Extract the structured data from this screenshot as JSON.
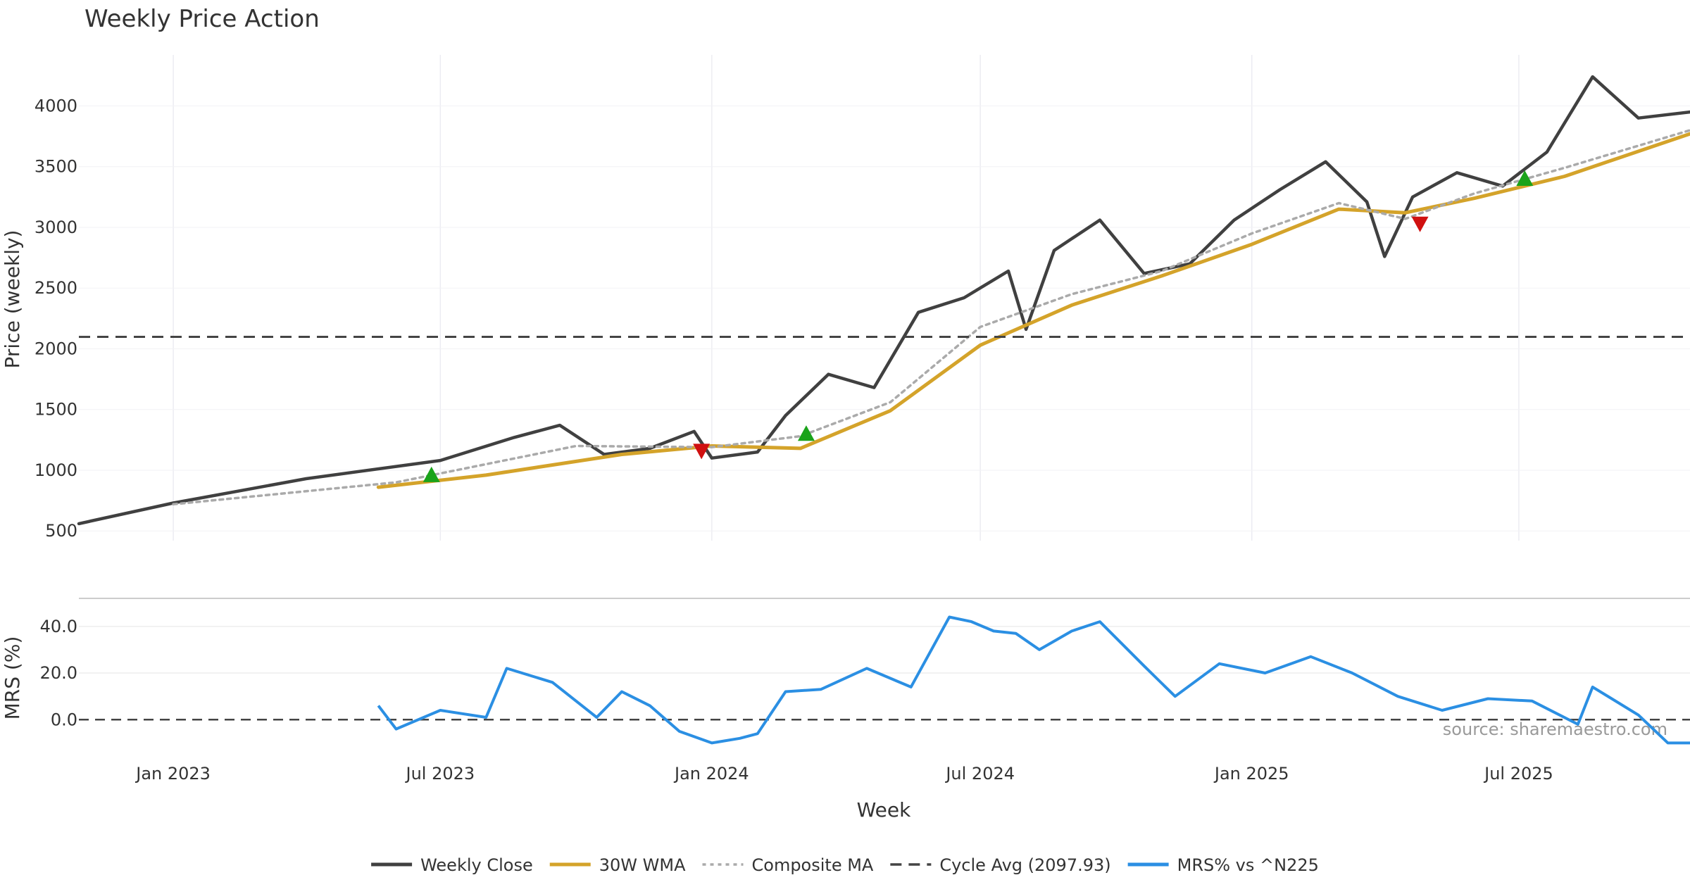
{
  "chart_data": [
    {
      "type": "line",
      "title": "Weekly Price Action",
      "ylabel": "Price (weekly)",
      "ylim": [
        420,
        4420
      ],
      "yticks": [
        500,
        1000,
        1500,
        2000,
        2500,
        3000,
        3500,
        4000
      ],
      "xlim": [
        "2022-10-29",
        "2025-10-25"
      ],
      "grid": true,
      "series": [
        {
          "name": "Weekly Close",
          "color": "#404040",
          "x": [
            "2022-10-29",
            "2023-01-01",
            "2023-04-01",
            "2023-07-01",
            "2023-08-20",
            "2023-09-20",
            "2023-10-20",
            "2023-11-20",
            "2023-12-20",
            "2024-01-01",
            "2024-02-01",
            "2024-02-20",
            "2024-03-20",
            "2024-04-20",
            "2024-05-20",
            "2024-06-20",
            "2024-07-20",
            "2024-08-01",
            "2024-08-20",
            "2024-09-20",
            "2024-10-20",
            "2024-11-20",
            "2024-12-20",
            "2025-01-20",
            "2025-02-20",
            "2025-03-20",
            "2025-04-01",
            "2025-04-20",
            "2025-05-20",
            "2025-06-20",
            "2025-07-20",
            "2025-08-20",
            "2025-09-20",
            "2025-10-25"
          ],
          "values": [
            560,
            730,
            930,
            1080,
            1270,
            1370,
            1130,
            1180,
            1320,
            1100,
            1150,
            1450,
            1790,
            1680,
            2300,
            2420,
            2640,
            2160,
            2810,
            3060,
            2620,
            2700,
            3060,
            3310,
            3540,
            3210,
            2760,
            3250,
            3450,
            3340,
            3620,
            4240,
            3900,
            3950
          ]
        },
        {
          "name": "30W WMA",
          "color": "#d4a32a",
          "x": [
            "2023-05-20",
            "2023-08-01",
            "2023-11-01",
            "2024-01-01",
            "2024-03-01",
            "2024-05-01",
            "2024-07-01",
            "2024-09-01",
            "2024-11-01",
            "2025-01-01",
            "2025-03-01",
            "2025-04-15",
            "2025-06-01",
            "2025-08-01",
            "2025-10-25"
          ],
          "values": [
            860,
            960,
            1130,
            1200,
            1180,
            1490,
            2030,
            2360,
            2600,
            2860,
            3150,
            3120,
            3240,
            3420,
            3770
          ]
        },
        {
          "name": "Composite MA",
          "color": "#aaaaaa",
          "x": [
            "2023-01-01",
            "2023-06-01",
            "2023-10-01",
            "2024-01-01",
            "2024-03-01",
            "2024-05-01",
            "2024-07-01",
            "2024-09-01",
            "2024-11-01",
            "2025-01-01",
            "2025-03-01",
            "2025-04-15",
            "2025-06-01",
            "2025-08-01",
            "2025-10-25"
          ],
          "values": [
            720,
            900,
            1200,
            1190,
            1280,
            1560,
            2180,
            2450,
            2640,
            2950,
            3200,
            3070,
            3280,
            3490,
            3800
          ]
        },
        {
          "name": "Cycle Avg (2097.93)",
          "color": "#444444",
          "constant": 2097.93
        }
      ],
      "markers": [
        {
          "kind": "buy",
          "date": "2023-06-25",
          "value": 960,
          "color": "#1aa31a"
        },
        {
          "kind": "sell",
          "date": "2023-12-25",
          "value": 1160,
          "color": "#d01010"
        },
        {
          "kind": "buy",
          "date": "2024-03-05",
          "value": 1300,
          "color": "#1aa31a"
        },
        {
          "kind": "sell",
          "date": "2025-04-25",
          "value": 3030,
          "color": "#d01010"
        },
        {
          "kind": "buy",
          "date": "2025-07-05",
          "value": 3400,
          "color": "#1aa31a"
        }
      ]
    },
    {
      "type": "line",
      "title": "",
      "xlabel": "Week",
      "ylabel": "MRS (%)",
      "ylim": [
        -15,
        52
      ],
      "yticks": [
        "40.0",
        "20.0",
        "0.0"
      ],
      "ytick_values": [
        40,
        20,
        0
      ],
      "xticks": [
        "Jan 2023",
        "Jul 2023",
        "Jan 2024",
        "Jul 2024",
        "Jan 2025",
        "Jul 2025"
      ],
      "xtick_dates": [
        "2023-01-01",
        "2023-07-01",
        "2024-01-01",
        "2024-07-01",
        "2025-01-01",
        "2025-07-01"
      ],
      "xlim": [
        "2022-10-29",
        "2025-10-25"
      ],
      "series": [
        {
          "name": "MRS% vs ^N225",
          "color": "#2b8fe3",
          "x": [
            "2023-05-20",
            "2023-06-01",
            "2023-07-01",
            "2023-08-01",
            "2023-08-15",
            "2023-09-15",
            "2023-10-15",
            "2023-11-01",
            "2023-11-20",
            "2023-12-10",
            "2024-01-01",
            "2024-01-20",
            "2024-02-01",
            "2024-02-20",
            "2024-03-15",
            "2024-04-15",
            "2024-05-15",
            "2024-06-10",
            "2024-06-25",
            "2024-07-10",
            "2024-07-25",
            "2024-08-10",
            "2024-09-01",
            "2024-09-20",
            "2024-10-20",
            "2024-11-10",
            "2024-12-10",
            "2025-01-10",
            "2025-02-10",
            "2025-03-10",
            "2025-04-10",
            "2025-05-10",
            "2025-06-10",
            "2025-07-10",
            "2025-08-10",
            "2025-08-20",
            "2025-09-20",
            "2025-10-10",
            "2025-10-25"
          ],
          "values": [
            6,
            -4,
            4,
            1,
            22,
            16,
            1,
            12,
            6,
            -5,
            -10,
            -8,
            -6,
            12,
            13,
            22,
            14,
            44,
            42,
            38,
            37,
            30,
            38,
            42,
            23,
            10,
            24,
            20,
            27,
            20,
            10,
            4,
            9,
            8,
            -2,
            14,
            2,
            -10,
            -10
          ]
        }
      ],
      "annotation": "source: sharemaestro.com"
    }
  ],
  "legend": {
    "placement": "bottom-center",
    "items": [
      {
        "label": "Weekly Close",
        "style": "solid",
        "color": "#404040"
      },
      {
        "label": "30W WMA",
        "style": "solid",
        "color": "#d4a32a"
      },
      {
        "label": "Composite MA",
        "style": "dotted",
        "color": "#aaaaaa"
      },
      {
        "label": "Cycle Avg (2097.93)",
        "style": "dashed",
        "color": "#444444"
      },
      {
        "label": "MRS% vs ^N225",
        "style": "solid",
        "color": "#2b8fe3"
      }
    ]
  }
}
